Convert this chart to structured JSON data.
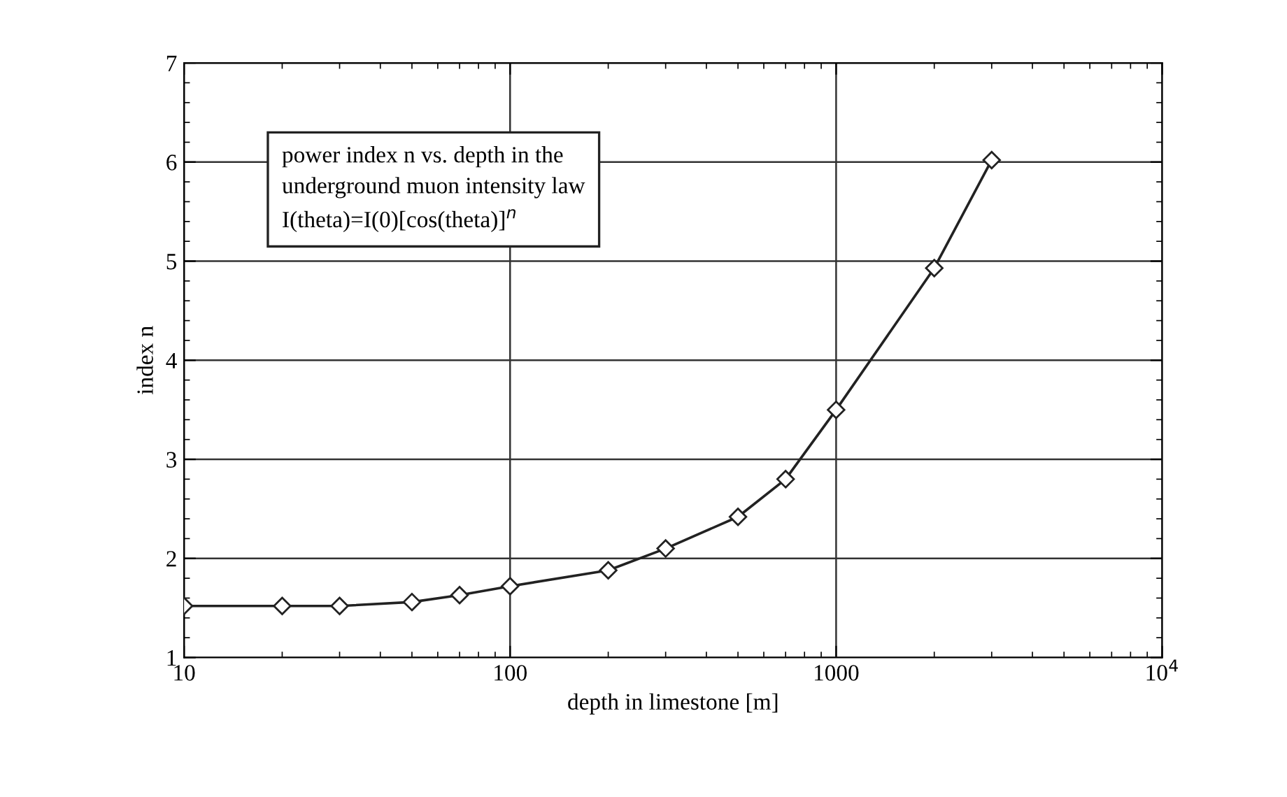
{
  "chart_data": {
    "type": "line",
    "xlabel": "depth in limestone [m]",
    "ylabel": "index n",
    "x": [
      10,
      20,
      30,
      50,
      70,
      100,
      200,
      300,
      500,
      700,
      1000,
      2000,
      3000
    ],
    "series": [
      {
        "color": "#222222",
        "values": [
          1.52,
          1.52,
          1.52,
          1.56,
          1.63,
          1.72,
          1.88,
          2.1,
          2.42,
          2.8,
          3.5,
          4.93,
          6.02
        ]
      }
    ],
    "log": "x",
    "xlim": [
      10,
      10000
    ],
    "xticks": [
      10,
      100,
      1000,
      {
        "value": 10000,
        "label": "10$^{4}$"
      }
    ],
    "ylim": [
      1,
      7
    ],
    "yticks": [
      1,
      2,
      3,
      4,
      5,
      6,
      7
    ],
    "grid": true,
    "marker": "diamond",
    "line_style": "solid",
    "annotations": [
      "power index n vs. depth in the\nunderground muon intensity law\nI(theta)=I(0)[cos(theta)]$^{n}$"
    ]
  }
}
